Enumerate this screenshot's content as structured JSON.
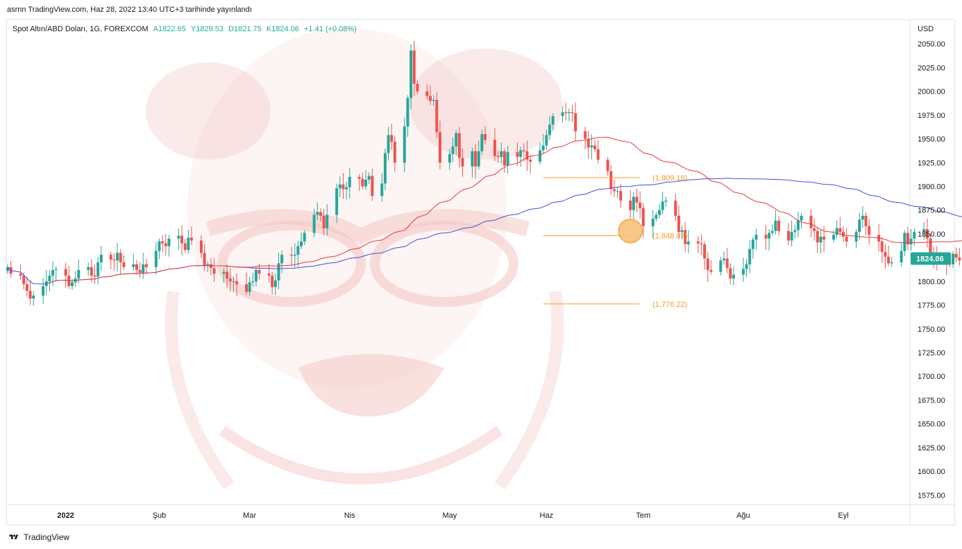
{
  "header": {
    "published_line": "asrnn TradingView.com, Haz 28, 2022 13:40 UTC+3 tarihinde yayınlandı"
  },
  "legend": {
    "symbol": "Spot Altın/ABD Doları, 1G, FOREXCOM",
    "open": "A1822.65",
    "high": "Y1829.53",
    "low": "D1821.75",
    "close": "K1824.06",
    "change": "+1.41 (+0.08%)"
  },
  "footer": {
    "brand": "TradingView"
  },
  "colors": {
    "up": "#26a69a",
    "down": "#ef5350",
    "ma_fast": "#e53935",
    "ma_slow": "#3f51d8",
    "level": "#f59a23",
    "price_label_bg": "#26a69a",
    "circle_fill": "#f9c27c",
    "watermark": "#f2c4c0"
  },
  "chart_data": {
    "type": "candlestick",
    "currency": "USD",
    "ylim": [
      1565,
      2075
    ],
    "yticks": [
      2050,
      2025,
      2000,
      1975,
      1950,
      1925,
      1900,
      1875,
      1850,
      1825,
      1800,
      1775,
      1750,
      1725,
      1700,
      1675,
      1650,
      1625,
      1600,
      1575
    ],
    "ytick_labels": [
      "2050.00",
      "2025.00",
      "2000.00",
      "1975.00",
      "1950.00",
      "1925.00",
      "1900.00",
      "1875.00",
      "1850.00",
      "1825.00",
      "1800.00",
      "1775.00",
      "1750.00",
      "1725.00",
      "1700.00",
      "1675.00",
      "1650.00",
      "1625.00",
      "1600.00",
      "1575.00"
    ],
    "xaxis": [
      {
        "label": "2022",
        "date": "2022-01-03"
      },
      {
        "label": "Şub",
        "date": "2022-02-01"
      },
      {
        "label": "Mar",
        "date": "2022-03-01"
      },
      {
        "label": "Nis",
        "date": "2022-04-01"
      },
      {
        "label": "May",
        "date": "2022-05-02"
      },
      {
        "label": "Haz",
        "date": "2022-06-01"
      },
      {
        "label": "Tem",
        "date": "2022-07-01"
      },
      {
        "label": "Ağu",
        "date": "2022-08-01"
      },
      {
        "label": "Eyl",
        "date": "2022-09-01"
      }
    ],
    "x_first": "2021-12-16",
    "last_price": "1824.06",
    "levels": [
      {
        "value": 1909.18,
        "label": "(1,909.18)",
        "from": "2022-05-31",
        "to": "2022-06-30"
      },
      {
        "value": 1848.07,
        "label": "(1,848.07)",
        "from": "2022-05-31",
        "to": "2022-06-30"
      },
      {
        "value": 1776.22,
        "label": "(1,776.22)",
        "from": "2022-05-31",
        "to": "2022-06-30"
      }
    ],
    "circle": {
      "date": "2022-06-27",
      "value": 1853
    },
    "closes": [
      1815,
      1808,
      1806,
      1797,
      1790,
      1782,
      1785,
      1795,
      1800,
      1806,
      1812,
      1813,
      1806,
      1795,
      1799,
      1803,
      1812,
      1815,
      1806,
      1805,
      1820,
      1828,
      1823,
      1822,
      1830,
      1820,
      1815,
      1818,
      1812,
      1809,
      1818,
      1815,
      1832,
      1842,
      1840,
      1837,
      1845,
      1848,
      1840,
      1833,
      1846,
      1843,
      1830,
      1817,
      1818,
      1814,
      1808,
      1810,
      1803,
      1800,
      1800,
      1797,
      1789,
      1799,
      1800,
      1812,
      1808,
      1806,
      1794,
      1801,
      1819,
      1828,
      1827,
      1828,
      1837,
      1842,
      1851,
      1870,
      1873,
      1869,
      1856,
      1870,
      1898,
      1902,
      1897,
      1899,
      1910,
      1908,
      1900,
      1907,
      1911,
      1890,
      1903,
      1935,
      1954,
      1947,
      1925,
      1963,
      1993,
      2043,
      2008,
      2000,
      1995,
      1990,
      1991,
      1957,
      1925,
      1934,
      1942,
      1956,
      1930,
      1921,
      1937,
      1921,
      1937,
      1955,
      1949,
      1932,
      1931,
      1937,
      1922,
      1936,
      1931,
      1938,
      1937,
      1928,
      1926,
      1938,
      1943,
      1954,
      1965,
      1974,
      1978,
      1977,
      1978,
      1977,
      1958,
      1950,
      1941,
      1943,
      1939,
      1928,
      1916,
      1897,
      1895,
      1895,
      1885,
      1875,
      1889,
      1883,
      1877,
      1858,
      1866,
      1870,
      1875,
      1884,
      1885,
      1869,
      1852,
      1854,
      1839,
      1842,
      1840,
      1839,
      1824,
      1812,
      1810,
      1822,
      1824,
      1814,
      1803,
      1807,
      1813,
      1818,
      1834,
      1844,
      1849,
      1845,
      1851,
      1853,
      1864,
      1853,
      1843,
      1852,
      1854,
      1864,
      1869,
      1856,
      1853,
      1841,
      1847,
      1844,
      1849,
      1856,
      1852,
      1847,
      1842,
      1852,
      1865,
      1869,
      1858,
      1849,
      1842,
      1831,
      1826,
      1819,
      1820,
      1832,
      1851,
      1839,
      1845,
      1852,
      1855,
      1845,
      1828,
      1825,
      1823,
      1819,
      1818,
      1829,
      1825,
      1822,
      1824
    ]
  }
}
